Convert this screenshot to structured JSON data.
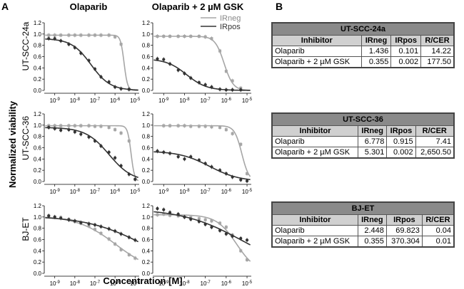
{
  "panel_a_letter": "A",
  "panel_b_letter": "B",
  "col_titles": [
    "Olaparib",
    "Olaparib + 2 µM GSK"
  ],
  "row_labels": [
    "UT-SCC-24a",
    "UT-SCC-36",
    "BJ-ET"
  ],
  "y_axis_label": "Normalized viability",
  "x_axis_label": "Concentration [M]",
  "legend": [
    "IRneg",
    "IRpos"
  ],
  "colors": {
    "irneg": "#a6a6a6",
    "irpos": "#333333"
  },
  "chart_data": {
    "type": "line",
    "x_scale": "log",
    "x_range": [
      3e-10,
      1.6e-05
    ],
    "x_ticks": [
      "10^-9",
      "10^-8",
      "10^-7",
      "10^-6",
      "10^-5"
    ],
    "y_range": [
      0,
      1.2
    ],
    "y_ticks": [
      "0.0",
      "0.2",
      "0.4",
      "0.6",
      "0.8",
      "1.0",
      "1.2"
    ],
    "panels": [
      {
        "row": 0,
        "col": 0,
        "series": [
          {
            "name": "IRneg",
            "x": [
              5e-10,
              1e-09,
              2e-09,
              5e-09,
              1e-08,
              2e-08,
              5e-08,
              1e-07,
              2e-07,
              5e-07,
              1e-06,
              2e-06,
              5e-06
            ],
            "y": [
              0.98,
              0.98,
              0.98,
              0.98,
              0.98,
              0.98,
              0.98,
              0.98,
              0.98,
              0.98,
              0.95,
              0.82,
              0.02
            ]
          },
          {
            "name": "IRpos",
            "x": [
              5e-10,
              1e-09,
              2e-09,
              5e-09,
              1e-08,
              2e-08,
              5e-08,
              1e-07,
              2e-07,
              5e-07,
              1e-06,
              2e-06,
              5e-06
            ],
            "y": [
              0.92,
              0.92,
              0.88,
              0.82,
              0.76,
              0.66,
              0.53,
              0.38,
              0.24,
              0.15,
              0.06,
              0.03,
              0.02
            ]
          }
        ]
      },
      {
        "row": 0,
        "col": 1,
        "series": [
          {
            "name": "IRneg",
            "x": [
              5e-10,
              1e-09,
              2e-09,
              5e-09,
              1e-08,
              2e-08,
              5e-08,
              1e-07,
              2e-07,
              5e-07,
              1e-06,
              2e-06,
              5e-06
            ],
            "y": [
              0.96,
              0.96,
              0.96,
              0.96,
              0.96,
              0.96,
              0.96,
              0.95,
              0.92,
              0.7,
              0.34,
              0.17,
              0.04
            ]
          },
          {
            "name": "IRpos",
            "x": [
              5e-10,
              1e-09,
              2e-09,
              5e-09,
              1e-08,
              2e-08,
              5e-08,
              1e-07,
              2e-07,
              5e-07,
              1e-06,
              2e-06,
              5e-06
            ],
            "y": [
              0.56,
              0.55,
              0.47,
              0.36,
              0.3,
              0.22,
              0.14,
              0.1,
              0.06,
              0.02,
              0.01,
              0.01,
              0.01
            ]
          }
        ]
      },
      {
        "row": 1,
        "col": 0,
        "series": [
          {
            "name": "IRneg",
            "x": [
              5e-10,
              1e-09,
              2e-09,
              5e-09,
              1e-08,
              2e-08,
              5e-08,
              1e-07,
              2e-07,
              5e-07,
              1e-06,
              2e-06,
              5e-06,
              1e-05
            ],
            "y": [
              0.99,
              0.99,
              0.99,
              0.99,
              0.99,
              0.99,
              0.99,
              0.98,
              0.98,
              0.96,
              0.92,
              0.86,
              0.72,
              0.04
            ]
          },
          {
            "name": "IRpos",
            "x": [
              5e-10,
              1e-09,
              2e-09,
              5e-09,
              1e-08,
              2e-08,
              5e-08,
              1e-07,
              2e-07,
              5e-07,
              1e-06,
              2e-06,
              5e-06,
              1e-05
            ],
            "y": [
              0.96,
              0.94,
              0.91,
              0.92,
              0.88,
              0.84,
              0.79,
              0.72,
              0.63,
              0.52,
              0.42,
              0.28,
              0.13,
              0.04
            ]
          }
        ]
      },
      {
        "row": 1,
        "col": 1,
        "series": [
          {
            "name": "IRneg",
            "x": [
              1e-09,
              2e-09,
              5e-09,
              1e-08,
              2e-08,
              5e-08,
              1e-07,
              2e-07,
              5e-07,
              1e-06,
              2e-06,
              5e-06,
              1e-05
            ],
            "y": [
              0.99,
              0.99,
              0.99,
              0.99,
              0.98,
              0.98,
              0.98,
              0.97,
              0.96,
              0.92,
              0.85,
              0.66,
              0.14
            ]
          },
          {
            "name": "IRpos",
            "x": [
              5e-10,
              1e-09,
              2e-09,
              5e-09,
              1e-08,
              2e-08,
              5e-08,
              1e-07,
              2e-07,
              5e-07,
              1e-06,
              2e-06,
              5e-06,
              1e-05
            ],
            "y": [
              0.54,
              0.52,
              0.5,
              0.44,
              0.4,
              0.44,
              0.38,
              0.32,
              0.26,
              0.2,
              0.14,
              0.08,
              0.03,
              0.01
            ]
          }
        ]
      },
      {
        "row": 2,
        "col": 0,
        "series": [
          {
            "name": "IRneg",
            "x": [
              5e-10,
              1e-09,
              2e-09,
              5e-09,
              1e-08,
              2e-08,
              5e-08,
              1e-07,
              2e-07,
              5e-07,
              1e-06,
              2e-06,
              5e-06,
              1e-05
            ],
            "y": [
              1.02,
              1.0,
              0.99,
              0.96,
              0.92,
              0.89,
              0.84,
              0.78,
              0.71,
              0.61,
              0.52,
              0.42,
              0.33,
              0.27
            ]
          },
          {
            "name": "IRpos",
            "x": [
              5e-10,
              1e-09,
              2e-09,
              5e-09,
              1e-08,
              2e-08,
              5e-08,
              1e-07,
              2e-07,
              5e-07,
              1e-06,
              2e-06,
              5e-06,
              1e-05
            ],
            "y": [
              1.02,
              1.0,
              0.98,
              0.95,
              0.93,
              0.9,
              0.88,
              0.86,
              0.83,
              0.79,
              0.75,
              0.7,
              0.64,
              0.59
            ]
          }
        ]
      },
      {
        "row": 2,
        "col": 1,
        "series": [
          {
            "name": "IRneg",
            "x": [
              5e-10,
              1e-09,
              2e-09,
              5e-09,
              1e-08,
              2e-08,
              5e-08,
              1e-07,
              2e-07,
              5e-07,
              1e-06,
              2e-06,
              5e-06,
              1e-05
            ],
            "y": [
              1.04,
              1.05,
              1.03,
              1.02,
              1.0,
              0.99,
              0.97,
              0.95,
              0.93,
              0.89,
              0.82,
              0.68,
              0.4,
              0.24
            ]
          },
          {
            "name": "IRpos",
            "x": [
              5e-10,
              1e-09,
              2e-09,
              5e-09,
              1e-08,
              2e-08,
              5e-08,
              1e-07,
              2e-07,
              5e-07,
              1e-06,
              2e-06,
              5e-06,
              1e-05
            ],
            "y": [
              1.15,
              1.13,
              1.08,
              1.05,
              1.0,
              0.96,
              0.92,
              0.87,
              0.82,
              0.76,
              0.7,
              0.66,
              0.62,
              0.59
            ]
          }
        ]
      }
    ]
  },
  "tables": [
    {
      "title": "UT-SCC-24a",
      "headers": [
        "Inhibitor",
        "IRneg",
        "IRpos",
        "R/CER"
      ],
      "rows": [
        [
          "Olaparib",
          "1.436",
          "0.101",
          "14.22"
        ],
        [
          "Olaparib + 2 µM GSK",
          "0.355",
          "0.002",
          "177.50"
        ]
      ]
    },
    {
      "title": "UT-SCC-36",
      "headers": [
        "Inhibitor",
        "IRneg",
        "IRpos",
        "R/CER"
      ],
      "rows": [
        [
          "Olaparib",
          "6.778",
          "0.915",
          "7.41"
        ],
        [
          "Olaparib + 2 µM GSK",
          "5.301",
          "0.002",
          "2,650.50"
        ]
      ]
    },
    {
      "title": "BJ-ET",
      "headers": [
        "Inhibitor",
        "IRneg",
        "IRpos",
        "R/CER"
      ],
      "rows": [
        [
          "Olaparib",
          "2.448",
          "69.823",
          "0.04"
        ],
        [
          "Olaparib + 2 µM GSK",
          "0.355",
          "370.304",
          "0.01"
        ]
      ]
    }
  ]
}
